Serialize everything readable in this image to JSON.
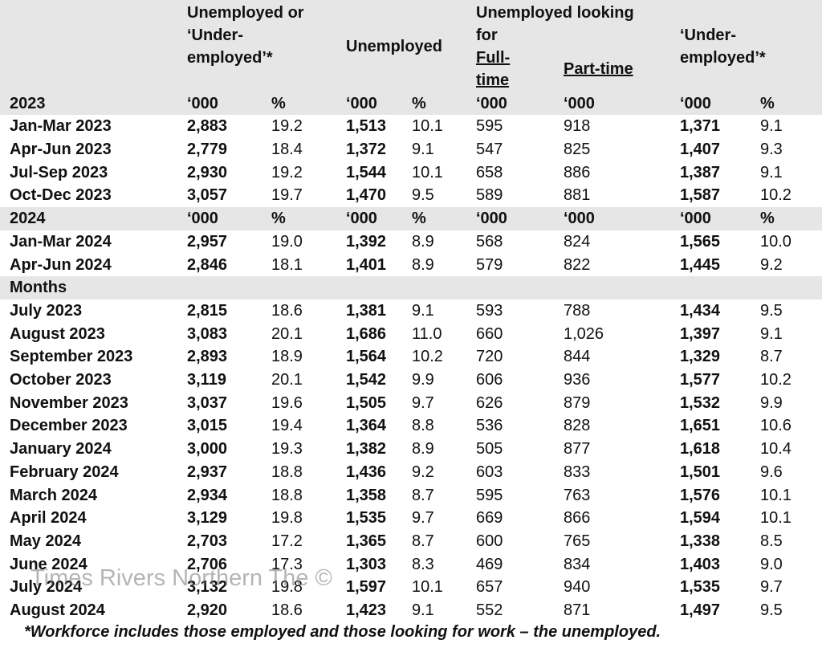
{
  "header": {
    "groups": [
      {
        "lines": [
          "Unemployed or",
          "‘Under-",
          "employed’*"
        ]
      },
      {
        "lines": [
          "Unemployed"
        ]
      },
      {
        "lines": [
          "Unemployed looking",
          "for"
        ]
      },
      {
        "lines": [
          "Full-",
          "time"
        ]
      },
      {
        "lines": [
          "Part-time"
        ]
      },
      {
        "lines": [
          "‘Under-",
          "employed’*"
        ]
      }
    ]
  },
  "sections": [
    {
      "title": "2023",
      "units": [
        "‘000",
        "%",
        "‘000",
        "%",
        "‘000",
        "‘000",
        "‘000",
        "%"
      ],
      "rows": [
        {
          "label": "Jan-Mar 2023",
          "values": [
            "2,883",
            "19.2",
            "1,513",
            "10.1",
            "595",
            "918",
            "1,371",
            "9.1"
          ]
        },
        {
          "label": "Apr-Jun 2023",
          "values": [
            "2,779",
            "18.4",
            "1,372",
            "9.1",
            "547",
            "825",
            "1,407",
            "9.3"
          ]
        },
        {
          "label": "Jul-Sep 2023",
          "values": [
            "2,930",
            "19.2",
            "1,544",
            "10.1",
            "658",
            "886",
            "1,387",
            "9.1"
          ]
        },
        {
          "label": "Oct-Dec 2023",
          "values": [
            "3,057",
            "19.7",
            "1,470",
            "9.5",
            "589",
            "881",
            "1,587",
            "10.2"
          ]
        }
      ]
    },
    {
      "title": "2024",
      "units": [
        "‘000",
        "%",
        "‘000",
        "%",
        "‘000",
        "‘000",
        "‘000",
        "%"
      ],
      "rows": [
        {
          "label": "Jan-Mar 2024",
          "values": [
            "2,957",
            "19.0",
            "1,392",
            "8.9",
            "568",
            "824",
            "1,565",
            "10.0"
          ]
        },
        {
          "label": "Apr-Jun 2024",
          "values": [
            "2,846",
            "18.1",
            "1,401",
            "8.9",
            "579",
            "822",
            "1,445",
            "9.2"
          ]
        }
      ]
    },
    {
      "title": "Months",
      "rows": [
        {
          "label": "July 2023",
          "values": [
            "2,815",
            "18.6",
            "1,381",
            "9.1",
            "593",
            "788",
            "1,434",
            "9.5"
          ]
        },
        {
          "label": "August 2023",
          "values": [
            "3,083",
            "20.1",
            "1,686",
            "11.0",
            "660",
            "1,026",
            "1,397",
            "9.1"
          ]
        },
        {
          "label": "September 2023",
          "values": [
            "2,893",
            "18.9",
            "1,564",
            "10.2",
            "720",
            "844",
            "1,329",
            "8.7"
          ]
        },
        {
          "label": "October 2023",
          "values": [
            "3,119",
            "20.1",
            "1,542",
            "9.9",
            "606",
            "936",
            "1,577",
            "10.2"
          ]
        },
        {
          "label": "November 2023",
          "values": [
            "3,037",
            "19.6",
            "1,505",
            "9.7",
            "626",
            "879",
            "1,532",
            "9.9"
          ]
        },
        {
          "label": "December 2023",
          "values": [
            "3,015",
            "19.4",
            "1,364",
            "8.8",
            "536",
            "828",
            "1,651",
            "10.6"
          ]
        },
        {
          "label": "January 2024",
          "values": [
            "3,000",
            "19.3",
            "1,382",
            "8.9",
            "505",
            "877",
            "1,618",
            "10.4"
          ]
        },
        {
          "label": "February 2024",
          "values": [
            "2,937",
            "18.8",
            "1,436",
            "9.2",
            "603",
            "833",
            "1,501",
            "9.6"
          ]
        },
        {
          "label": "March 2024",
          "values": [
            "2,934",
            "18.8",
            "1,358",
            "8.7",
            "595",
            "763",
            "1,576",
            "10.1"
          ]
        },
        {
          "label": "April 2024",
          "values": [
            "3,129",
            "19.8",
            "1,535",
            "9.7",
            "669",
            "866",
            "1,594",
            "10.1"
          ]
        },
        {
          "label": "May 2024",
          "values": [
            "2,703",
            "17.2",
            "1,365",
            "8.7",
            "600",
            "765",
            "1,338",
            "8.5"
          ]
        },
        {
          "label": "June 2024",
          "values": [
            "2,706",
            "17.3",
            "1,303",
            "8.3",
            "469",
            "834",
            "1,403",
            "9.0"
          ]
        },
        {
          "label": "July 2024",
          "values": [
            "3,132",
            "19.8",
            "1,597",
            "10.1",
            "657",
            "940",
            "1,535",
            "9.7"
          ]
        },
        {
          "label": "August 2024",
          "values": [
            "2,920",
            "18.6",
            "1,423",
            "9.1",
            "552",
            "871",
            "1,497",
            "9.5"
          ]
        }
      ]
    }
  ],
  "watermark": "Times Rivers Northern The ©",
  "footnote": "*Workforce includes those employed and those looking for work – the unemployed."
}
